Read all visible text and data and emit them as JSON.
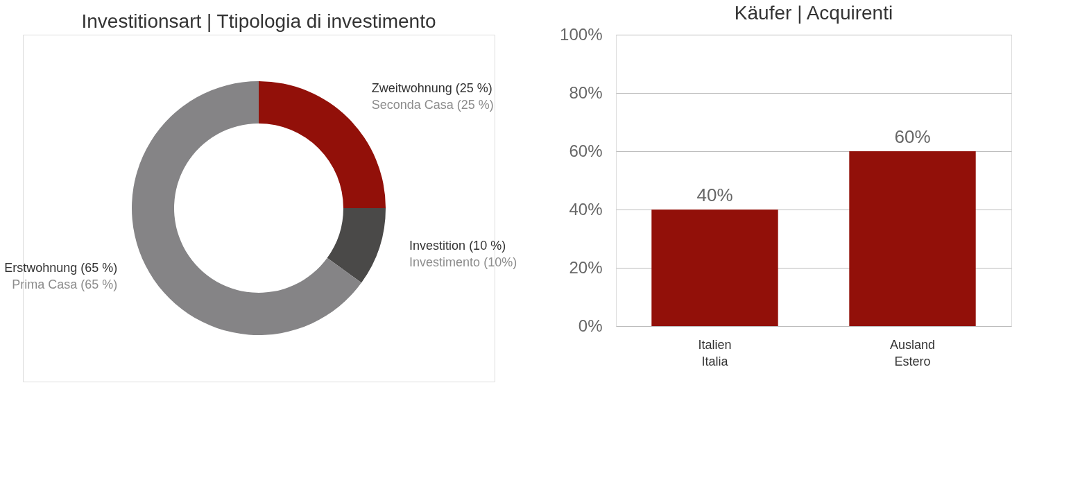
{
  "chart_data": [
    {
      "type": "donut",
      "title": "Investitionsart | Ttipologia di investimento",
      "categories": [
        "Zweitwohnung (25 %)\nSeconda Casa (25 %)",
        "Investition (10 %)\nInvestimento (10%)",
        "Erstwohnung (65 %)\nPrima Casa (65 %)"
      ],
      "values": [
        25,
        10,
        65
      ],
      "colors": [
        "#921009",
        "#4a4948",
        "#858486"
      ]
    },
    {
      "type": "bar",
      "title": "Käufer | Acquirenti",
      "categories": [
        "Italien\nItalia",
        "Ausland\nEstero"
      ],
      "values": [
        40,
        60
      ],
      "color": "#921009",
      "value_labels": [
        "40%",
        "60%"
      ],
      "ylim": [
        0,
        100
      ],
      "yticks": [
        {
          "value": 0,
          "label": "0%"
        },
        {
          "value": 20,
          "label": "20%"
        },
        {
          "value": 40,
          "label": "40%"
        },
        {
          "value": 60,
          "label": "60%"
        },
        {
          "value": 80,
          "label": "80%"
        },
        {
          "value": 100,
          "label": "100%"
        }
      ],
      "grid": "y"
    }
  ]
}
